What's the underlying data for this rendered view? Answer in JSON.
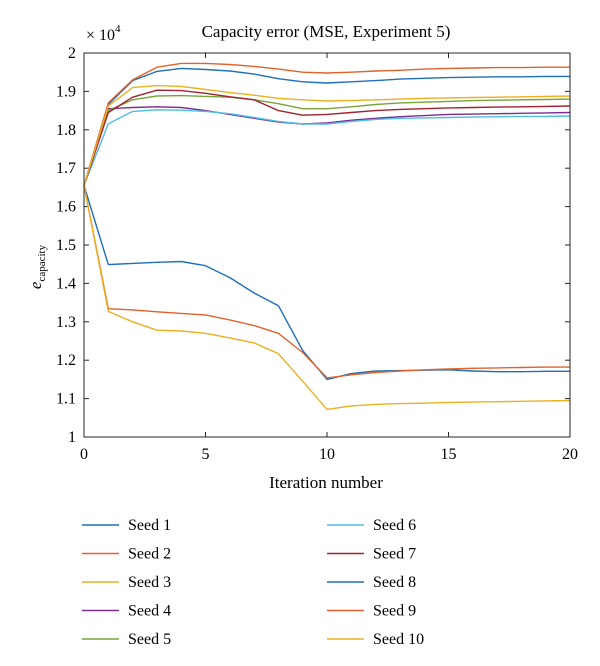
{
  "chart_data": {
    "type": "line",
    "title": "Capacity error (MSE, Experiment 5)",
    "xlabel": "Iteration number",
    "ylabel_main": "e",
    "ylabel_sub": "capacity",
    "scale_label_base": "× 10",
    "scale_label_exp": "4",
    "xlim": [
      0,
      20
    ],
    "ylim": [
      1,
      2
    ],
    "xticks": [
      0,
      5,
      10,
      15,
      20
    ],
    "yticks": [
      1,
      1.1,
      1.2,
      1.3,
      1.4,
      1.5,
      1.6,
      1.7,
      1.8,
      1.9,
      2
    ],
    "grid": false,
    "legend_position": "bottom",
    "x": [
      0,
      1,
      2,
      3,
      4,
      5,
      6,
      7,
      8,
      9,
      10,
      11,
      12,
      13,
      14,
      15,
      16,
      17,
      18,
      19,
      20
    ],
    "series": [
      {
        "name": "Seed 1",
        "color": "#1f6fba",
        "values": [
          1.655,
          1.449,
          1.452,
          1.455,
          1.457,
          1.446,
          1.415,
          1.375,
          1.342,
          1.225,
          1.15,
          1.165,
          1.172,
          1.173,
          1.174,
          1.175,
          1.172,
          1.17,
          1.17,
          1.171,
          1.171
        ]
      },
      {
        "name": "Seed 2",
        "color": "#e2622a",
        "values": [
          1.655,
          1.334,
          1.331,
          1.326,
          1.322,
          1.318,
          1.305,
          1.29,
          1.27,
          1.22,
          1.154,
          1.162,
          1.168,
          1.172,
          1.175,
          1.177,
          1.179,
          1.18,
          1.181,
          1.182,
          1.182
        ]
      },
      {
        "name": "Seed 3",
        "color": "#ecb020",
        "values": [
          1.655,
          1.327,
          1.3,
          1.278,
          1.276,
          1.27,
          1.258,
          1.245,
          1.217,
          1.145,
          1.072,
          1.081,
          1.085,
          1.087,
          1.088,
          1.09,
          1.091,
          1.092,
          1.093,
          1.094,
          1.095
        ]
      },
      {
        "name": "Seed 4",
        "color": "#7b2e8e",
        "values": [
          1.655,
          1.855,
          1.858,
          1.86,
          1.858,
          1.85,
          1.84,
          1.83,
          1.82,
          1.815,
          1.818,
          1.825,
          1.83,
          1.834,
          1.837,
          1.84,
          1.841,
          1.842,
          1.843,
          1.844,
          1.845
        ]
      },
      {
        "name": "Seed 5",
        "color": "#79a43b",
        "values": [
          1.655,
          1.85,
          1.878,
          1.888,
          1.889,
          1.887,
          1.885,
          1.878,
          1.868,
          1.855,
          1.855,
          1.86,
          1.866,
          1.87,
          1.872,
          1.874,
          1.876,
          1.877,
          1.878,
          1.879,
          1.88
        ]
      },
      {
        "name": "Seed 6",
        "color": "#4dbde8",
        "values": [
          1.655,
          1.816,
          1.848,
          1.852,
          1.851,
          1.848,
          1.842,
          1.832,
          1.822,
          1.815,
          1.815,
          1.822,
          1.827,
          1.83,
          1.831,
          1.832,
          1.833,
          1.834,
          1.835,
          1.835,
          1.836
        ]
      },
      {
        "name": "Seed 7",
        "color": "#a2222f",
        "values": [
          1.655,
          1.845,
          1.885,
          1.903,
          1.902,
          1.895,
          1.886,
          1.878,
          1.85,
          1.838,
          1.84,
          1.845,
          1.85,
          1.853,
          1.855,
          1.857,
          1.858,
          1.859,
          1.86,
          1.861,
          1.862
        ]
      },
      {
        "name": "Seed 8",
        "color": "#1f6fba",
        "values": [
          1.655,
          1.866,
          1.928,
          1.952,
          1.96,
          1.957,
          1.953,
          1.945,
          1.933,
          1.925,
          1.922,
          1.925,
          1.928,
          1.932,
          1.934,
          1.936,
          1.937,
          1.938,
          1.938,
          1.939,
          1.939
        ]
      },
      {
        "name": "Seed 9",
        "color": "#e2622a",
        "values": [
          1.655,
          1.87,
          1.93,
          1.963,
          1.973,
          1.973,
          1.97,
          1.965,
          1.958,
          1.95,
          1.948,
          1.95,
          1.953,
          1.955,
          1.958,
          1.96,
          1.961,
          1.962,
          1.962,
          1.963,
          1.963
        ]
      },
      {
        "name": "Seed 10",
        "color": "#ecb020",
        "values": [
          1.655,
          1.862,
          1.91,
          1.915,
          1.913,
          1.905,
          1.897,
          1.89,
          1.882,
          1.878,
          1.875,
          1.876,
          1.878,
          1.88,
          1.882,
          1.883,
          1.884,
          1.885,
          1.886,
          1.887,
          1.888
        ]
      }
    ]
  }
}
